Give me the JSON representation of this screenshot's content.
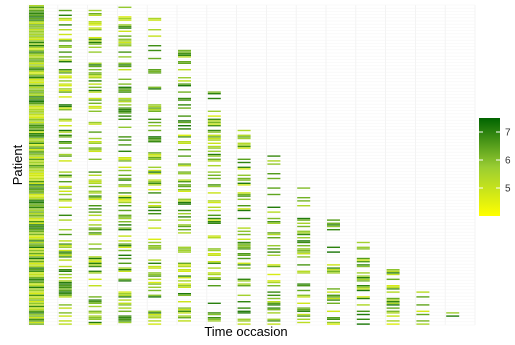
{
  "chart_data": {
    "type": "heatmap",
    "title": "",
    "xlabel": "Time occasion",
    "ylabel": "Patient",
    "legend": {
      "position": "right",
      "ticks": [
        5,
        6,
        7
      ],
      "range": [
        4,
        7.5
      ],
      "colors": {
        "low": "#ffff00",
        "mid": "#9acd32",
        "high": "#006400"
      }
    },
    "grid": true,
    "n_patients": 200,
    "n_occasions": 15,
    "dropout_occasion_by_patient_fraction": [
      [
        0.0,
        4
      ],
      [
        0.08,
        5
      ],
      [
        0.2,
        6
      ],
      [
        0.3,
        7
      ],
      [
        0.42,
        8
      ],
      [
        0.52,
        9
      ],
      [
        0.62,
        10
      ],
      [
        0.7,
        11
      ],
      [
        0.78,
        12
      ],
      [
        0.85,
        13
      ],
      [
        0.92,
        14
      ],
      [
        1.0,
        15
      ]
    ]
  }
}
